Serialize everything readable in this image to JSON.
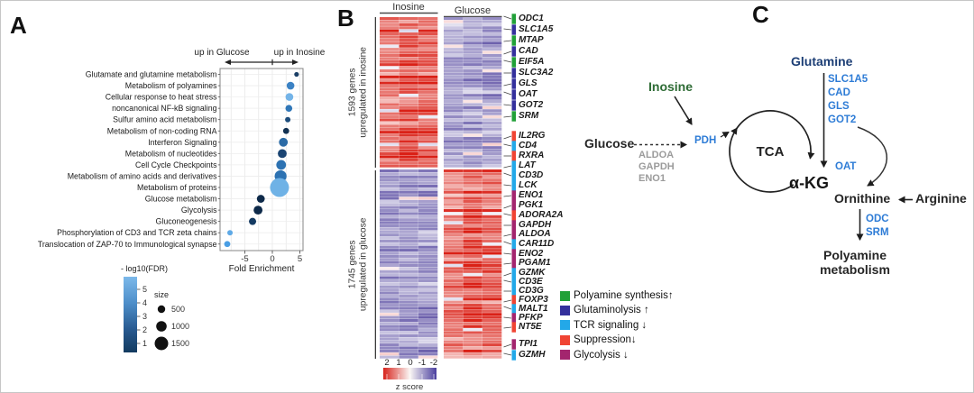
{
  "figure": {
    "panel_letters": [
      "A",
      "B",
      "C"
    ],
    "background": "#ffffff"
  },
  "chart_data": [
    {
      "panel": "A",
      "type": "scatter",
      "xlabel": "Fold Enrichment",
      "x_ticks": [
        -5,
        0,
        5
      ],
      "x_tick_labels": [
        "-5",
        "0",
        "5"
      ],
      "xlim": [
        -9.6,
        5.5
      ],
      "grid": true,
      "direction_left": "up in Glucose",
      "direction_right": "up in Inosine",
      "color_scale": {
        "title": "- log10(FDR)",
        "ticks": [
          "5",
          "4",
          "3",
          "2",
          "1"
        ],
        "light": "#7cb9ea",
        "dark": "#123a5f"
      },
      "size_scale": {
        "title": "size",
        "items": [
          {
            "label": "500",
            "r": 4.2
          },
          {
            "label": "1000",
            "r": 5.8
          },
          {
            "label": "1500",
            "r": 7.5
          }
        ]
      },
      "points": [
        {
          "pathway": "Glutamate and glutamine metabolism",
          "fold_enrichment": 4.4,
          "neg_log10_fdr": 1.5,
          "size": 180,
          "r": 2.6,
          "color": "#1b3f66"
        },
        {
          "pathway": "Metabolism of polyamines",
          "fold_enrichment": 3.3,
          "neg_log10_fdr": 3.5,
          "size": 490,
          "r": 4.3,
          "color": "#3b82c4"
        },
        {
          "pathway": "Cellular response to heat stress",
          "fold_enrichment": 3.1,
          "neg_log10_fdr": 5.0,
          "size": 490,
          "r": 4.3,
          "color": "#74b4e8"
        },
        {
          "pathway": "noncanonical NF-kB signaling",
          "fold_enrichment": 3.0,
          "neg_log10_fdr": 3.2,
          "size": 385,
          "r": 3.8,
          "color": "#3077b8"
        },
        {
          "pathway": "Sulfur amino acid metabolism",
          "fold_enrichment": 2.8,
          "neg_log10_fdr": 2.3,
          "size": 240,
          "r": 3.0,
          "color": "#1d4d7c"
        },
        {
          "pathway": "Metabolism of non-coding RNA",
          "fold_enrichment": 2.5,
          "neg_log10_fdr": 1.6,
          "size": 310,
          "r": 3.4,
          "color": "#123152"
        },
        {
          "pathway": "Interferon Signaling",
          "fold_enrichment": 2.0,
          "neg_log10_fdr": 2.8,
          "size": 640,
          "r": 4.9,
          "color": "#2b6ba6"
        },
        {
          "pathway": "Metabolism of nucleotides",
          "fold_enrichment": 1.8,
          "neg_log10_fdr": 2.0,
          "size": 640,
          "r": 4.9,
          "color": "#1a4472"
        },
        {
          "pathway": "Cell Cycle Checkpoints",
          "fold_enrichment": 1.6,
          "neg_log10_fdr": 3.0,
          "size": 780,
          "r": 5.4,
          "color": "#2d72b2"
        },
        {
          "pathway": "Metabolism of amino acids and derivatives",
          "fold_enrichment": 1.5,
          "neg_log10_fdr": 3.0,
          "size": 1160,
          "r": 6.6,
          "color": "#2d72b2"
        },
        {
          "pathway": "Metabolism of proteins",
          "fold_enrichment": 1.3,
          "neg_log10_fdr": 4.8,
          "size": 2900,
          "r": 10.5,
          "color": "#6fb2e6"
        },
        {
          "pathway": "Glucose metabolism",
          "fold_enrichment": -2.1,
          "neg_log10_fdr": 1.0,
          "size": 515,
          "r": 4.4,
          "color": "#0e2a4a"
        },
        {
          "pathway": "Glycolysis",
          "fold_enrichment": -2.6,
          "neg_log10_fdr": 1.0,
          "size": 640,
          "r": 4.9,
          "color": "#0e2a4a"
        },
        {
          "pathway": "Gluconeogenesis",
          "fold_enrichment": -3.6,
          "neg_log10_fdr": 1.3,
          "size": 425,
          "r": 4.0,
          "color": "#143a62"
        },
        {
          "pathway": "Phosphorylation of CD3 and TCR zeta chains",
          "fold_enrichment": -7.7,
          "neg_log10_fdr": 4.6,
          "size": 240,
          "r": 3.0,
          "color": "#5ea9e6"
        },
        {
          "pathway": "Translocation of ZAP-70 to Immunological synapse",
          "fold_enrichment": -8.2,
          "neg_log10_fdr": 4.2,
          "size": 310,
          "r": 3.4,
          "color": "#4a9ee4"
        }
      ]
    },
    {
      "panel": "B",
      "type": "heatmap",
      "column_groups": [
        {
          "label": "Inosine",
          "n_cols": 3
        },
        {
          "label": "Glucose",
          "n_cols": 3
        }
      ],
      "row_groups": [
        {
          "label_lines": [
            "1593 genes",
            "upregulated in inosine"
          ],
          "n_genes": 1593,
          "high_in": "Inosine"
        },
        {
          "label_lines": [
            "1745 genes",
            "upregulated in glucose"
          ],
          "n_genes": 1745,
          "high_in": "Glucose"
        }
      ],
      "colorbar": {
        "label": "z score",
        "tick_labels": [
          "2",
          "1",
          "0",
          "-1",
          "-2"
        ],
        "positive_color": "#d7231c",
        "negative_color": "#4a3f9f"
      },
      "gene_labels": [
        {
          "gene": "ODC1",
          "category": "polyamine"
        },
        {
          "gene": "SLC1A5",
          "category": "glutaminolysis"
        },
        {
          "gene": "MTAP",
          "category": "polyamine"
        },
        {
          "gene": "CAD",
          "category": "glutaminolysis"
        },
        {
          "gene": "EIF5A",
          "category": "polyamine"
        },
        {
          "gene": "SLC3A2",
          "category": "glutaminolysis"
        },
        {
          "gene": "GLS",
          "category": "glutaminolysis"
        },
        {
          "gene": "OAT",
          "category": "glutaminolysis"
        },
        {
          "gene": "GOT2",
          "category": "glutaminolysis"
        },
        {
          "gene": "SRM",
          "category": "polyamine"
        },
        {
          "gene": "IL2RG",
          "category": "suppression"
        },
        {
          "gene": "CD4",
          "category": "tcr"
        },
        {
          "gene": "RXRA",
          "category": "suppression"
        },
        {
          "gene": "LAT",
          "category": "tcr"
        },
        {
          "gene": "CD3D",
          "category": "tcr"
        },
        {
          "gene": "LCK",
          "category": "tcr"
        },
        {
          "gene": "ENO1",
          "category": "glycolysis"
        },
        {
          "gene": "PGK1",
          "category": "glycolysis"
        },
        {
          "gene": "ADORA2A",
          "category": "suppression"
        },
        {
          "gene": "GAPDH",
          "category": "glycolysis"
        },
        {
          "gene": "ALDOA",
          "category": "glycolysis"
        },
        {
          "gene": "CAR11D",
          "category": "tcr"
        },
        {
          "gene": "ENO2",
          "category": "glycolysis"
        },
        {
          "gene": "PGAM1",
          "category": "glycolysis"
        },
        {
          "gene": "GZMK",
          "category": "tcr"
        },
        {
          "gene": "CD3E",
          "category": "tcr"
        },
        {
          "gene": "CD3G",
          "category": "tcr"
        },
        {
          "gene": "FOXP3",
          "category": "suppression"
        },
        {
          "gene": "MALT1",
          "category": "tcr"
        },
        {
          "gene": "PFKP",
          "category": "glycolysis"
        },
        {
          "gene": "NT5E",
          "category": "suppression"
        },
        {
          "gene": "TPI1",
          "category": "glycolysis"
        },
        {
          "gene": "GZMH",
          "category": "tcr"
        }
      ],
      "categories_legend": [
        {
          "key": "polyamine",
          "label": "Polyamine synthesis↑",
          "color": "#21a038"
        },
        {
          "key": "glutaminolysis",
          "label": "Glutaminolysis ↑",
          "color": "#34309c"
        },
        {
          "key": "tcr",
          "label": "TCR signaling ↓",
          "color": "#23a8e8"
        },
        {
          "key": "suppression",
          "label": "Suppression↓",
          "color": "#f04433"
        },
        {
          "key": "glycolysis",
          "label": "Glycolysis ↓",
          "color": "#a3256e"
        }
      ]
    }
  ],
  "panel_c": {
    "labels": {
      "glucose": "Glucose",
      "inosine": "Inosine",
      "glutamine": "Glutamine",
      "pdh": "PDH",
      "tca": "TCA",
      "akg": "α-KG",
      "oat": "OAT",
      "ornithine": "Ornithine",
      "arginine": "Arginine",
      "polyamine_line1": "Polyamine",
      "polyamine_line2": "metabolism"
    },
    "glutamine_enzymes": [
      "SLC1A5",
      "CAD",
      "GLS",
      "GOT2"
    ],
    "glycolysis_enzymes": [
      "ALDOA",
      "GAPDH",
      "ENO1"
    ],
    "polyamine_enzymes": [
      "ODC",
      "SRM"
    ],
    "colors": {
      "enzyme_blue": "#2e7cd6",
      "inosine_green": "#2d6b34",
      "glutamine_navy": "#1c3e75",
      "gray_enzymes": "#9b9b9b"
    }
  }
}
